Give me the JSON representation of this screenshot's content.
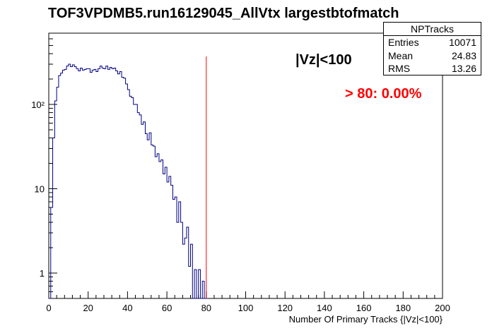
{
  "chart_data": {
    "type": "line",
    "title": "TOF3VPDMB5.run16129045_AllVtx largestbtofmatch",
    "xlabel": "Number Of Primary Tracks {|Vz|<100}",
    "ylabel": "",
    "xlim": [
      0,
      200
    ],
    "ylim": [
      0.5,
      700
    ],
    "y_scale": "log",
    "x_ticks": [
      "0",
      "20",
      "40",
      "60",
      "80",
      "100",
      "120",
      "140",
      "160",
      "180",
      "200"
    ],
    "y_ticks": [
      "1",
      "10",
      "10²"
    ],
    "series": [
      {
        "color": "#000080",
        "x": [
          0,
          1,
          2,
          3,
          4,
          5,
          6,
          7,
          8,
          9,
          10,
          11,
          12,
          13,
          14,
          15,
          16,
          17,
          18,
          19,
          20,
          21,
          22,
          23,
          24,
          25,
          26,
          27,
          28,
          29,
          30,
          31,
          32,
          33,
          34,
          35,
          36,
          37,
          38,
          39,
          40,
          41,
          42,
          43,
          44,
          45,
          46,
          47,
          48,
          49,
          50,
          51,
          52,
          53,
          54,
          55,
          56,
          57,
          58,
          59,
          60,
          61,
          62,
          63,
          64,
          65,
          66,
          67,
          68,
          69,
          70,
          71,
          72,
          73,
          74,
          75,
          76,
          77,
          78,
          79,
          80
        ],
        "values": [
          0,
          6,
          40,
          110,
          160,
          220,
          235,
          255,
          260,
          285,
          300,
          280,
          295,
          280,
          265,
          250,
          270,
          255,
          260,
          265,
          265,
          240,
          255,
          260,
          245,
          265,
          285,
          270,
          265,
          285,
          260,
          275,
          265,
          270,
          250,
          230,
          245,
          210,
          205,
          175,
          150,
          125,
          120,
          100,
          100,
          80,
          75,
          58,
          62,
          45,
          38,
          46,
          33,
          32,
          24,
          26,
          21,
          22,
          15,
          18,
          12,
          14,
          11,
          7.5,
          8,
          4,
          7,
          4,
          2.2,
          2.6,
          3.5,
          1.2,
          2.2,
          0,
          1.1,
          0.5,
          1.1,
          0.5,
          0.8,
          0.5,
          0.5
        ]
      }
    ],
    "cut_line": {
      "x": 80,
      "color": "#ff0000"
    },
    "annotations": {
      "cut": "|Vz|<100",
      "fraction": "> 80: 0.00%"
    }
  },
  "stats_box": {
    "name": "NPTracks",
    "rows": [
      {
        "label": "Entries",
        "value": "10071"
      },
      {
        "label": "Mean",
        "value": "24.83"
      },
      {
        "label": "RMS",
        "value": "13.26"
      }
    ]
  },
  "colors": {
    "histogram": "#000080",
    "cut": "#ff0000",
    "frame": "#000000"
  }
}
